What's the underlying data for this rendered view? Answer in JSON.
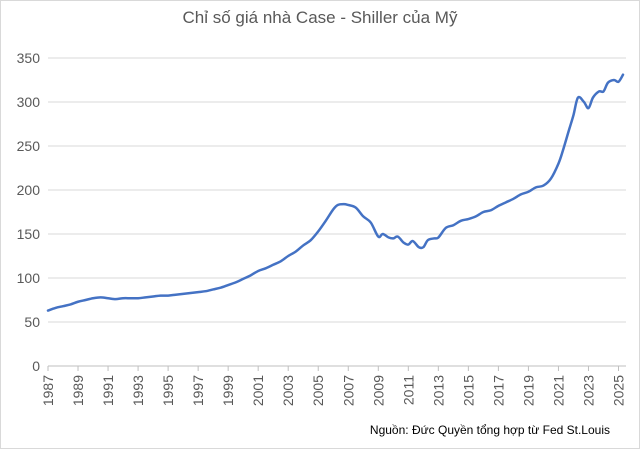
{
  "chart_data": {
    "type": "line",
    "title": "Chỉ số giá nhà Case - Shiller của Mỹ",
    "source": "Nguồn: Đức Quyền tổng hợp từ Fed St.Louis",
    "ylim": [
      0,
      350
    ],
    "yticks": [
      0,
      50,
      100,
      150,
      200,
      250,
      300,
      350
    ],
    "xlim": [
      1987,
      2025.5
    ],
    "xticks": [
      1987,
      1989,
      1991,
      1993,
      1995,
      1997,
      1999,
      2001,
      2003,
      2005,
      2007,
      2009,
      2011,
      2013,
      2015,
      2017,
      2019,
      2021,
      2023,
      2025
    ],
    "grid": "horizontal",
    "line_color": "#4472c4",
    "series": [
      {
        "x": [
          1987,
          1987.5,
          1988,
          1988.5,
          1989,
          1989.5,
          1990,
          1990.5,
          1991,
          1991.5,
          1992,
          1992.5,
          1993,
          1993.5,
          1994,
          1994.5,
          1995,
          1995.5,
          1996,
          1996.5,
          1997,
          1997.5,
          1998,
          1998.5,
          1999,
          1999.5,
          2000,
          2000.5,
          2001,
          2001.5,
          2002,
          2002.5,
          2003,
          2003.5,
          2004,
          2004.5,
          2005,
          2005.5,
          2006,
          2006.3,
          2006.7,
          2007,
          2007.5,
          2008,
          2008.5,
          2009,
          2009.3,
          2009.7,
          2010,
          2010.3,
          2010.7,
          2011,
          2011.3,
          2011.7,
          2012,
          2012.3,
          2012.7,
          2013,
          2013.5,
          2014,
          2014.5,
          2015,
          2015.5,
          2016,
          2016.5,
          2017,
          2017.5,
          2018,
          2018.5,
          2019,
          2019.5,
          2020,
          2020.5,
          2021,
          2021.3,
          2021.7,
          2022,
          2022.3,
          2022.7,
          2023,
          2023.3,
          2023.7,
          2024,
          2024.3,
          2024.7,
          2025,
          2025.3
        ],
        "y": [
          63,
          66,
          68,
          70,
          73,
          75,
          77,
          78,
          77,
          76,
          77,
          77,
          77,
          78,
          79,
          80,
          80,
          81,
          82,
          83,
          84,
          85,
          87,
          89,
          92,
          95,
          99,
          103,
          108,
          111,
          115,
          119,
          125,
          130,
          137,
          143,
          153,
          165,
          178,
          183,
          184,
          183,
          180,
          170,
          163,
          147,
          150,
          146,
          145,
          147,
          140,
          138,
          142,
          135,
          135,
          143,
          145,
          146,
          157,
          160,
          165,
          167,
          170,
          175,
          177,
          182,
          186,
          190,
          195,
          198,
          203,
          205,
          213,
          230,
          245,
          268,
          285,
          305,
          300,
          293,
          305,
          312,
          312,
          322,
          325,
          323,
          331
        ]
      }
    ]
  }
}
